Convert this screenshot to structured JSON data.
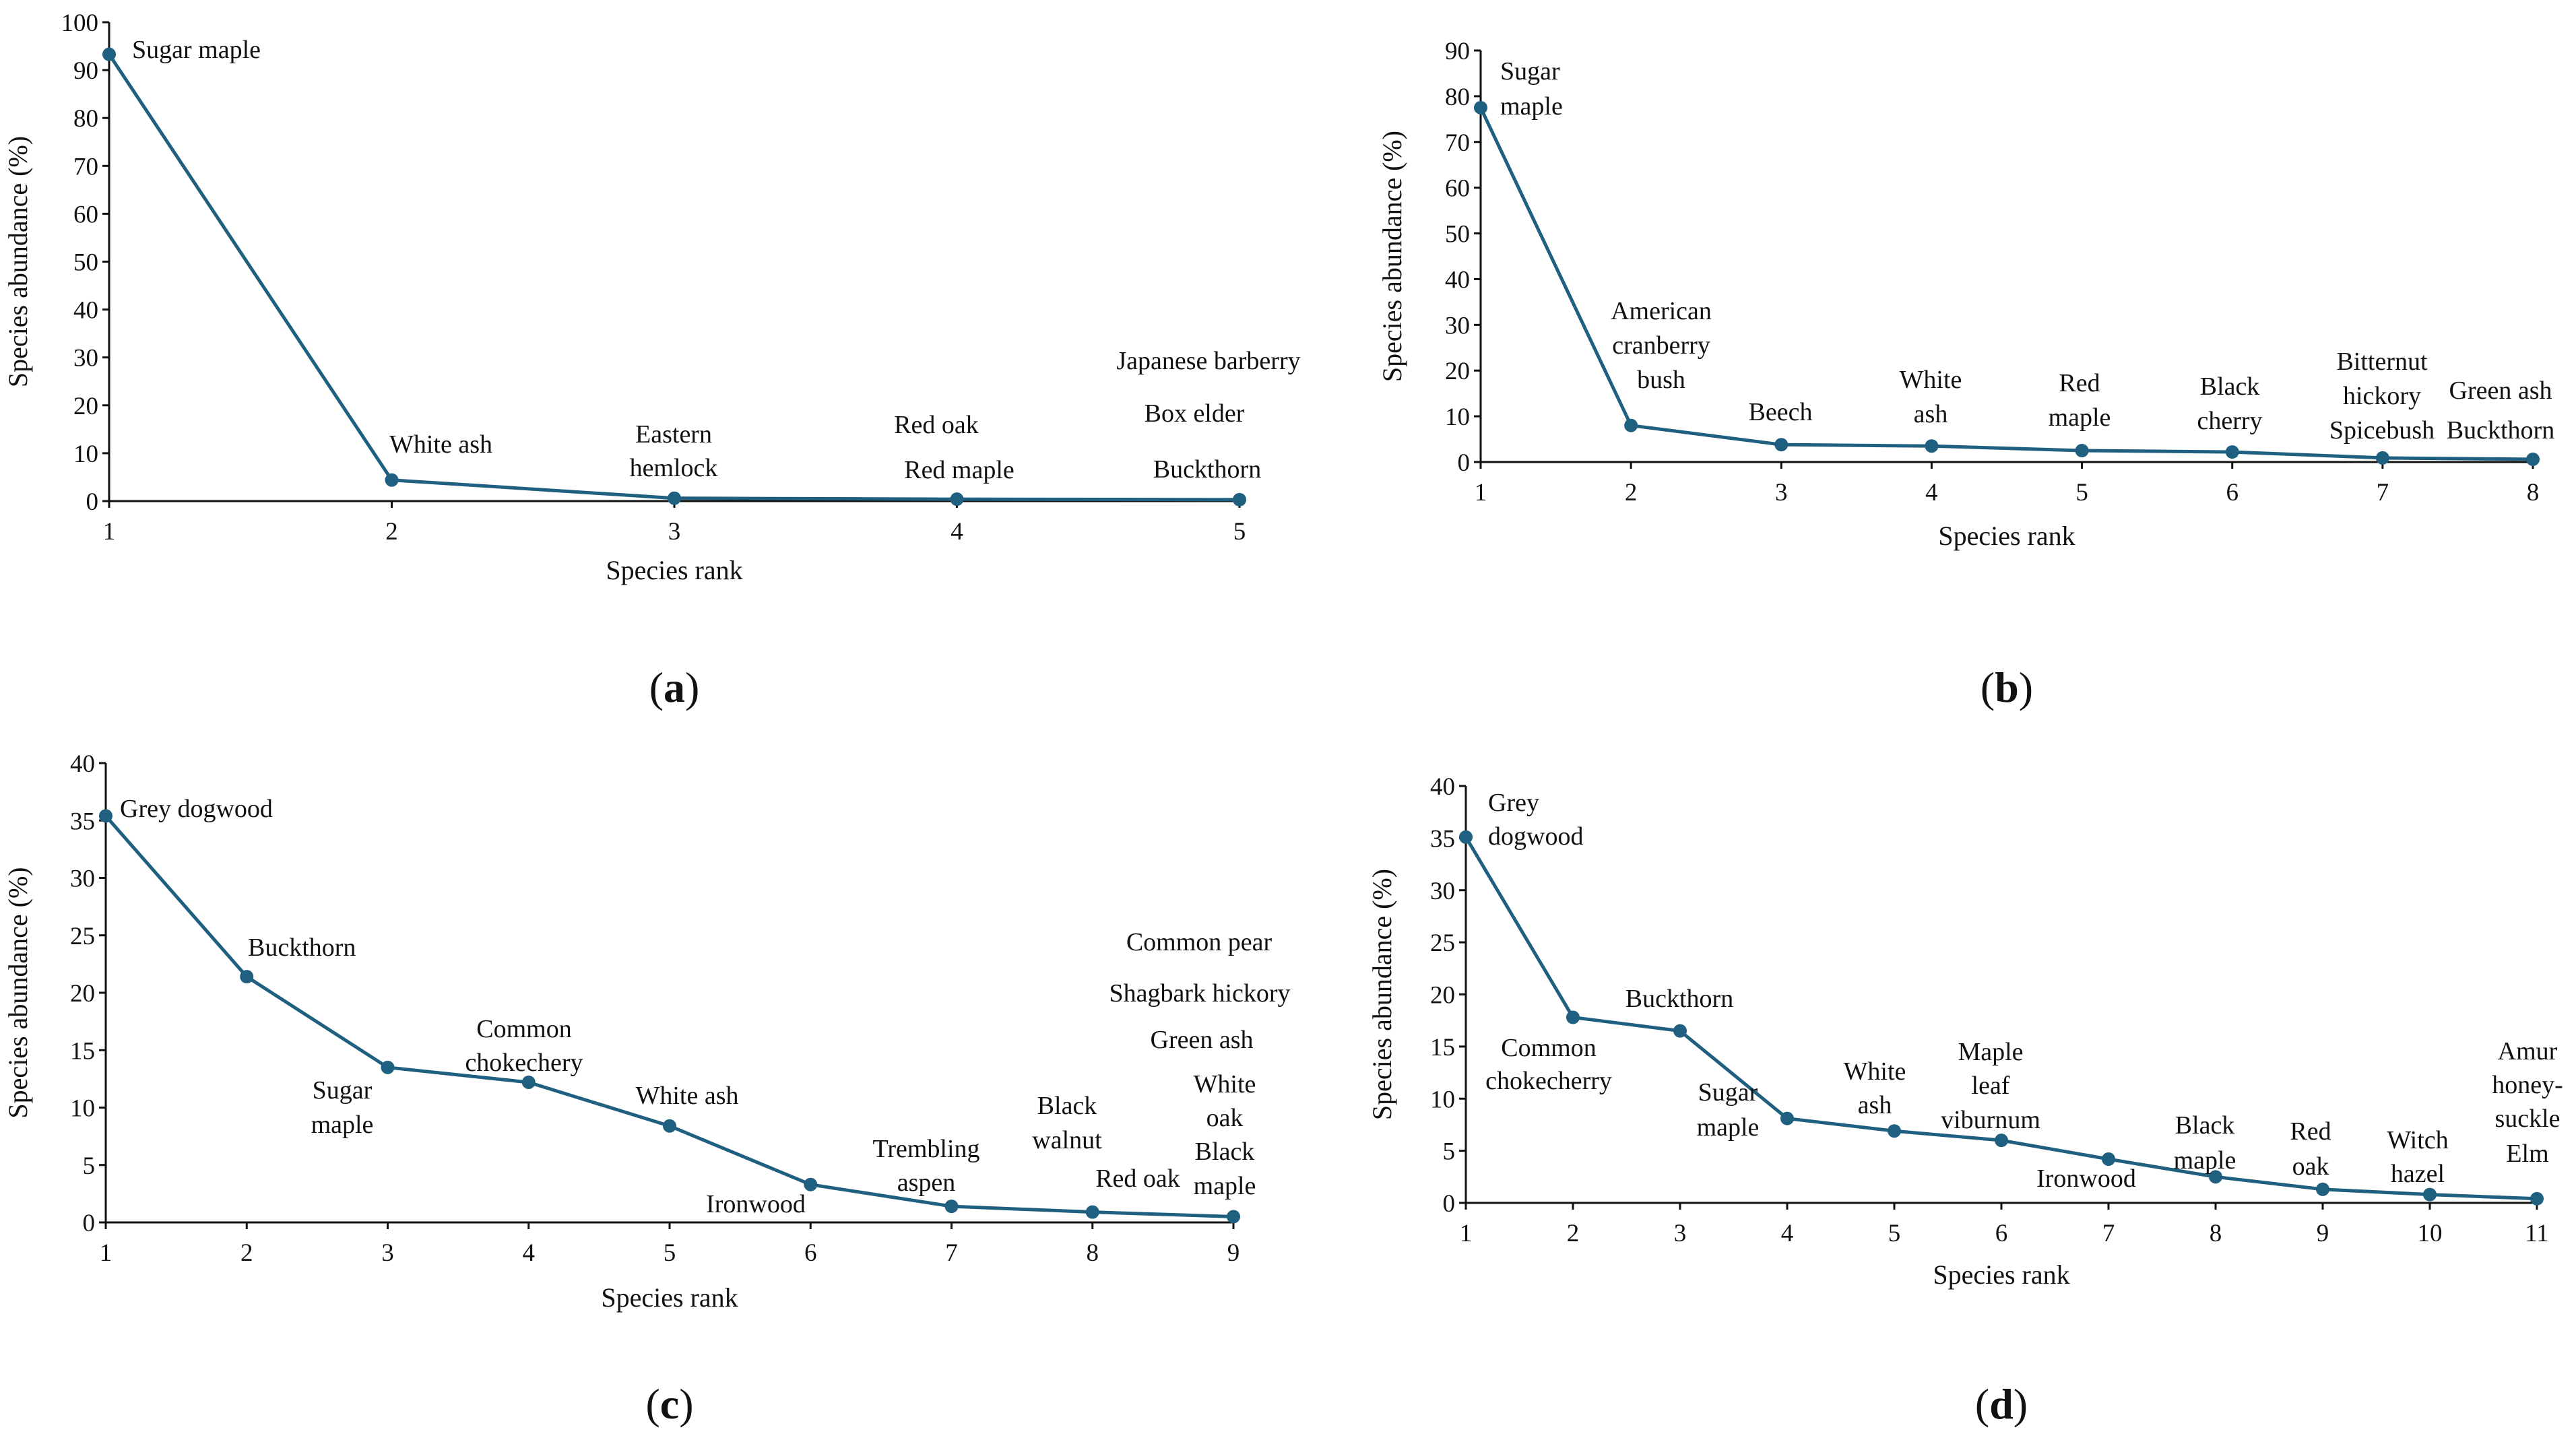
{
  "figure": {
    "colors": {
      "series": "#1f5f7f",
      "axis": "#111111",
      "text": "#111111"
    }
  },
  "chart_data": [
    {
      "id": "a",
      "type": "line",
      "panel_label": "(a)",
      "panel_letter": "a",
      "xlabel": "Species rank",
      "ylabel": "Species abundance (%)",
      "xlim": [
        1,
        5
      ],
      "ylim": [
        0,
        100
      ],
      "x_ticks": [
        1,
        2,
        3,
        4,
        5
      ],
      "y_ticks": [
        0,
        10,
        20,
        30,
        40,
        50,
        60,
        70,
        80,
        90,
        100
      ],
      "grid": false,
      "series": [
        {
          "x": [
            1,
            2,
            3,
            4,
            5
          ],
          "y": [
            93.3,
            4.4,
            0.6,
            0.4,
            0.3
          ]
        }
      ],
      "annotations": [
        {
          "x": 1,
          "y": 93.3,
          "lines": [
            "Sugar maple"
          ]
        },
        {
          "x": 2,
          "y": 4.4,
          "lines": [
            "White ash"
          ]
        },
        {
          "x": 3,
          "y": 0.6,
          "lines": [
            "Eastern",
            "hemlock"
          ]
        },
        {
          "x": 4,
          "y": 0.4,
          "lines": [
            "Red oak"
          ]
        },
        {
          "x": 4,
          "y": 0.4,
          "lines": [
            "Red maple"
          ]
        },
        {
          "x": 5,
          "y": 0.3,
          "lines": [
            "Japanese barberry"
          ]
        },
        {
          "x": 5,
          "y": 0.3,
          "lines": [
            "Box elder"
          ]
        },
        {
          "x": 5,
          "y": 0.3,
          "lines": [
            "Buckthorn"
          ]
        }
      ]
    },
    {
      "id": "b",
      "type": "line",
      "panel_label": "(b)",
      "panel_letter": "b",
      "xlabel": "Species rank",
      "ylabel": "Species abundance (%)",
      "xlim": [
        1,
        8
      ],
      "ylim": [
        0,
        90
      ],
      "x_ticks": [
        1,
        2,
        3,
        4,
        5,
        6,
        7,
        8
      ],
      "y_ticks": [
        0,
        10,
        20,
        30,
        40,
        50,
        60,
        70,
        80,
        90
      ],
      "grid": false,
      "series": [
        {
          "x": [
            1,
            2,
            3,
            4,
            5,
            6,
            7,
            8
          ],
          "y": [
            77.5,
            8.0,
            3.8,
            3.5,
            2.5,
            2.2,
            0.9,
            0.6
          ]
        }
      ],
      "annotations": [
        {
          "x": 1,
          "y": 77.5,
          "lines": [
            "Sugar",
            "maple"
          ]
        },
        {
          "x": 2,
          "y": 8.0,
          "lines": [
            "American",
            "cranberry",
            "bush"
          ]
        },
        {
          "x": 3,
          "y": 3.8,
          "lines": [
            "Beech"
          ]
        },
        {
          "x": 4,
          "y": 3.5,
          "lines": [
            "White",
            "ash"
          ]
        },
        {
          "x": 5,
          "y": 2.5,
          "lines": [
            "Red",
            "maple"
          ]
        },
        {
          "x": 6,
          "y": 2.2,
          "lines": [
            "Black",
            "cherry"
          ]
        },
        {
          "x": 7,
          "y": 0.9,
          "lines": [
            "Bitternut",
            "hickory",
            "Spicebush"
          ]
        },
        {
          "x": 8,
          "y": 0.6,
          "lines": [
            "Green ash",
            "Buckthorn"
          ]
        }
      ]
    },
    {
      "id": "c",
      "type": "line",
      "panel_label": "(c)",
      "panel_letter": "c",
      "xlabel": "Species rank",
      "ylabel": "Species abundance (%)",
      "xlim": [
        1,
        9
      ],
      "ylim": [
        0,
        40
      ],
      "x_ticks": [
        1,
        2,
        3,
        4,
        5,
        6,
        7,
        8,
        9
      ],
      "y_ticks": [
        0,
        5,
        10,
        15,
        20,
        25,
        30,
        35,
        40
      ],
      "grid": false,
      "series": [
        {
          "x": [
            1,
            2,
            3,
            4,
            5,
            6,
            7,
            8,
            9
          ],
          "y": [
            35.4,
            21.4,
            13.5,
            12.2,
            8.4,
            3.3,
            1.4,
            0.9,
            0.5
          ]
        }
      ],
      "annotations": [
        {
          "x": 1,
          "y": 35.4,
          "lines": [
            "Grey dogwood"
          ]
        },
        {
          "x": 2,
          "y": 21.4,
          "lines": [
            "Buckthorn"
          ]
        },
        {
          "x": 3,
          "y": 13.5,
          "lines": [
            "Sugar",
            "maple"
          ]
        },
        {
          "x": 4,
          "y": 12.2,
          "lines": [
            "Common",
            "chokechery"
          ]
        },
        {
          "x": 5,
          "y": 8.4,
          "lines": [
            "White ash"
          ]
        },
        {
          "x": 6,
          "y": 3.3,
          "lines": [
            "Ironwood"
          ]
        },
        {
          "x": 7,
          "y": 1.4,
          "lines": [
            "Trembling",
            "aspen"
          ]
        },
        {
          "x": 8,
          "y": 0.9,
          "lines": [
            "Black",
            "walnut"
          ]
        },
        {
          "x": 8,
          "y": 0.9,
          "lines": [
            "Red oak"
          ]
        },
        {
          "x": 9,
          "y": 0.5,
          "lines": [
            "Common pear"
          ]
        },
        {
          "x": 9,
          "y": 0.5,
          "lines": [
            "Shagbark hickory"
          ]
        },
        {
          "x": 9,
          "y": 0.5,
          "lines": [
            "Green ash"
          ]
        },
        {
          "x": 9,
          "y": 0.5,
          "lines": [
            "White",
            "oak",
            "Black",
            "maple"
          ]
        }
      ]
    },
    {
      "id": "d",
      "type": "line",
      "panel_label": "(d)",
      "panel_letter": "d",
      "xlabel": "Species rank",
      "ylabel": "Species abundance (%)",
      "xlim": [
        1,
        11
      ],
      "ylim": [
        0,
        40
      ],
      "x_ticks": [
        1,
        2,
        3,
        4,
        5,
        6,
        7,
        8,
        9,
        10,
        11
      ],
      "y_ticks": [
        0,
        5,
        10,
        15,
        20,
        25,
        30,
        35,
        40
      ],
      "grid": false,
      "series": [
        {
          "x": [
            1,
            2,
            3,
            4,
            5,
            6,
            7,
            8,
            9,
            10,
            11
          ],
          "y": [
            35.1,
            17.8,
            16.5,
            8.1,
            6.9,
            6.0,
            4.2,
            2.5,
            1.3,
            0.8,
            0.4
          ]
        }
      ],
      "annotations": [
        {
          "x": 1,
          "y": 35.1,
          "lines": [
            "Grey",
            "dogwood"
          ]
        },
        {
          "x": 2,
          "y": 17.8,
          "lines": [
            "Common",
            "chokecherry"
          ]
        },
        {
          "x": 3,
          "y": 16.5,
          "lines": [
            "Buckthorn"
          ]
        },
        {
          "x": 4,
          "y": 8.1,
          "lines": [
            "Sugar",
            "maple"
          ]
        },
        {
          "x": 5,
          "y": 6.9,
          "lines": [
            "White",
            "ash"
          ]
        },
        {
          "x": 6,
          "y": 6.0,
          "lines": [
            "Maple",
            "leaf",
            "viburnum"
          ]
        },
        {
          "x": 7,
          "y": 4.2,
          "lines": [
            "Ironwood"
          ]
        },
        {
          "x": 8,
          "y": 2.5,
          "lines": [
            "Black",
            "maple"
          ]
        },
        {
          "x": 9,
          "y": 1.3,
          "lines": [
            "Red",
            "oak"
          ]
        },
        {
          "x": 10,
          "y": 0.8,
          "lines": [
            "Witch",
            "hazel"
          ]
        },
        {
          "x": 11,
          "y": 0.4,
          "lines": [
            "Amur",
            "honey-",
            "suckle",
            "Elm"
          ]
        }
      ]
    }
  ]
}
